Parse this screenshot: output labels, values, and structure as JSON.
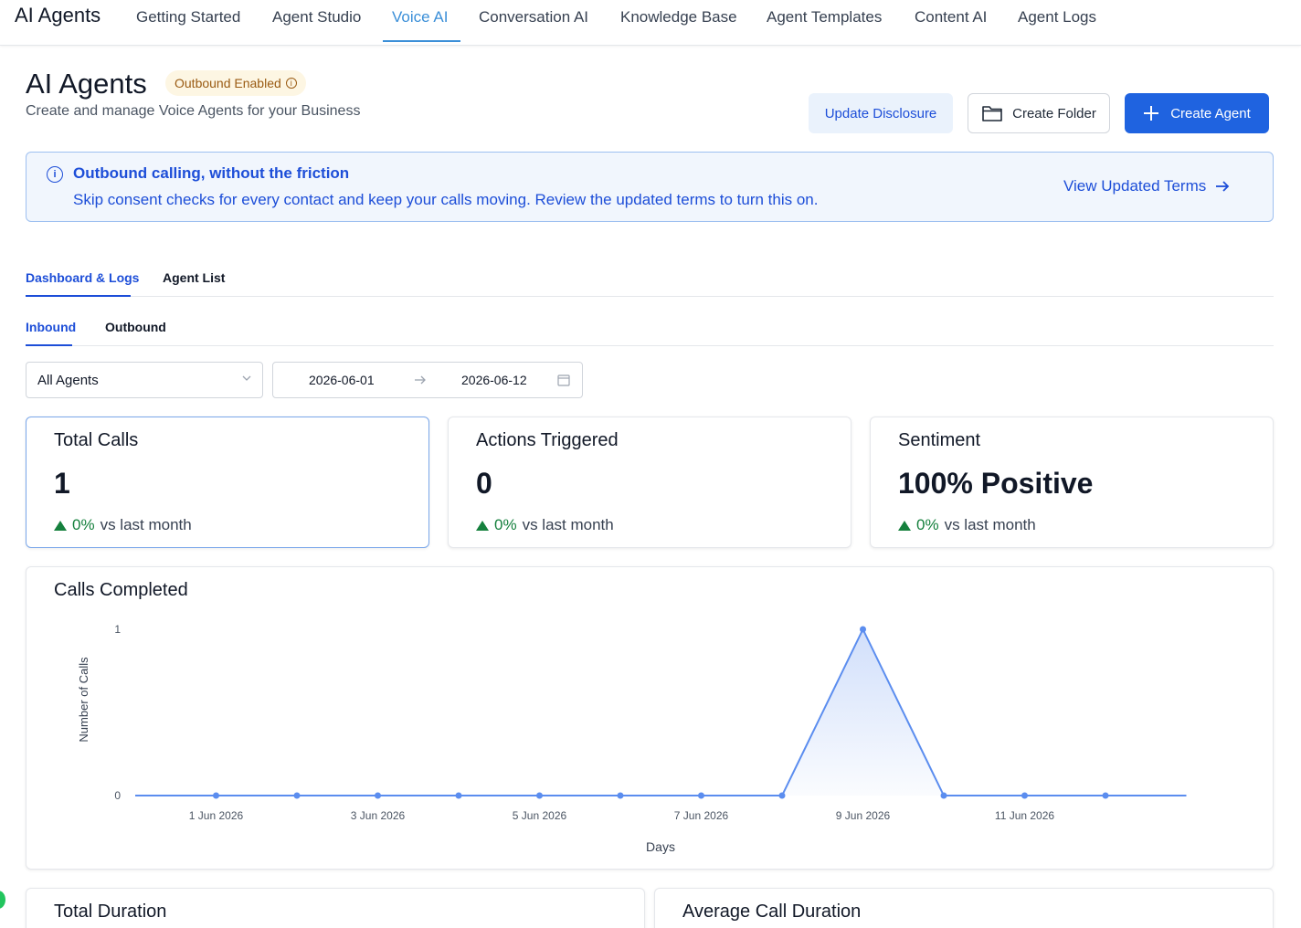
{
  "app": {
    "brand": "AI Agents",
    "nav": [
      {
        "label": "Getting Started"
      },
      {
        "label": "Agent Studio"
      },
      {
        "label": "Voice AI"
      },
      {
        "label": "Conversation AI"
      },
      {
        "label": "Knowledge Base"
      },
      {
        "label": "Agent Templates"
      },
      {
        "label": "Content AI"
      },
      {
        "label": "Agent Logs"
      }
    ],
    "active_nav": "Voice AI"
  },
  "header": {
    "title": "AI Agents",
    "badge": "Outbound Enabled",
    "subtitle": "Create and manage Voice Agents for your Business",
    "buttons": {
      "update_disclosure": "Update Disclosure",
      "create_folder": "Create Folder",
      "create_agent": "Create Agent"
    }
  },
  "banner": {
    "title": "Outbound calling, without the friction",
    "text": "Skip consent checks for every contact and keep your calls moving. Review the updated terms to turn this on.",
    "link": "View Updated Terms"
  },
  "tabs": {
    "main": [
      "Dashboard & Logs",
      "Agent List"
    ],
    "main_active": "Dashboard & Logs",
    "sub": [
      "Inbound",
      "Outbound"
    ],
    "sub_active": "Inbound"
  },
  "filters": {
    "agent_select": "All Agents",
    "date_start": "2026-06-01",
    "date_end": "2026-06-12"
  },
  "stats": [
    {
      "title": "Total Calls",
      "value": "1",
      "change": "0%",
      "suffix": "vs last month"
    },
    {
      "title": "Actions Triggered",
      "value": "0",
      "change": "0%",
      "suffix": "vs last month"
    },
    {
      "title": "Sentiment",
      "value": "100% Positive",
      "change": "0%",
      "suffix": "vs last month"
    }
  ],
  "chart_data": {
    "type": "area",
    "title": "Calls Completed",
    "xlabel": "Days",
    "ylabel": "Number of Calls",
    "x": [
      "31 May 2026",
      "1 Jun 2026",
      "2 Jun 2026",
      "3 Jun 2026",
      "4 Jun 2026",
      "5 Jun 2026",
      "6 Jun 2026",
      "7 Jun 2026",
      "8 Jun 2026",
      "9 Jun 2026",
      "10 Jun 2026",
      "11 Jun 2026",
      "12 Jun 2026",
      "13 Jun 2026"
    ],
    "values": [
      0,
      0,
      0,
      0,
      0,
      0,
      0,
      0,
      0,
      1,
      0,
      0,
      0,
      0
    ],
    "markers": [
      false,
      true,
      true,
      true,
      true,
      true,
      true,
      true,
      true,
      true,
      true,
      true,
      true,
      false
    ],
    "tick_labels": [
      "1 Jun 2026",
      "3 Jun 2026",
      "5 Jun 2026",
      "7 Jun 2026",
      "9 Jun 2026",
      "11 Jun 2026"
    ],
    "yticks": [
      "0",
      "1"
    ],
    "ylim": [
      0,
      1
    ],
    "grid": false,
    "color": "#5b8def"
  },
  "bottom_cards": [
    {
      "title": "Total Duration"
    },
    {
      "title": "Average Call Duration"
    }
  ]
}
